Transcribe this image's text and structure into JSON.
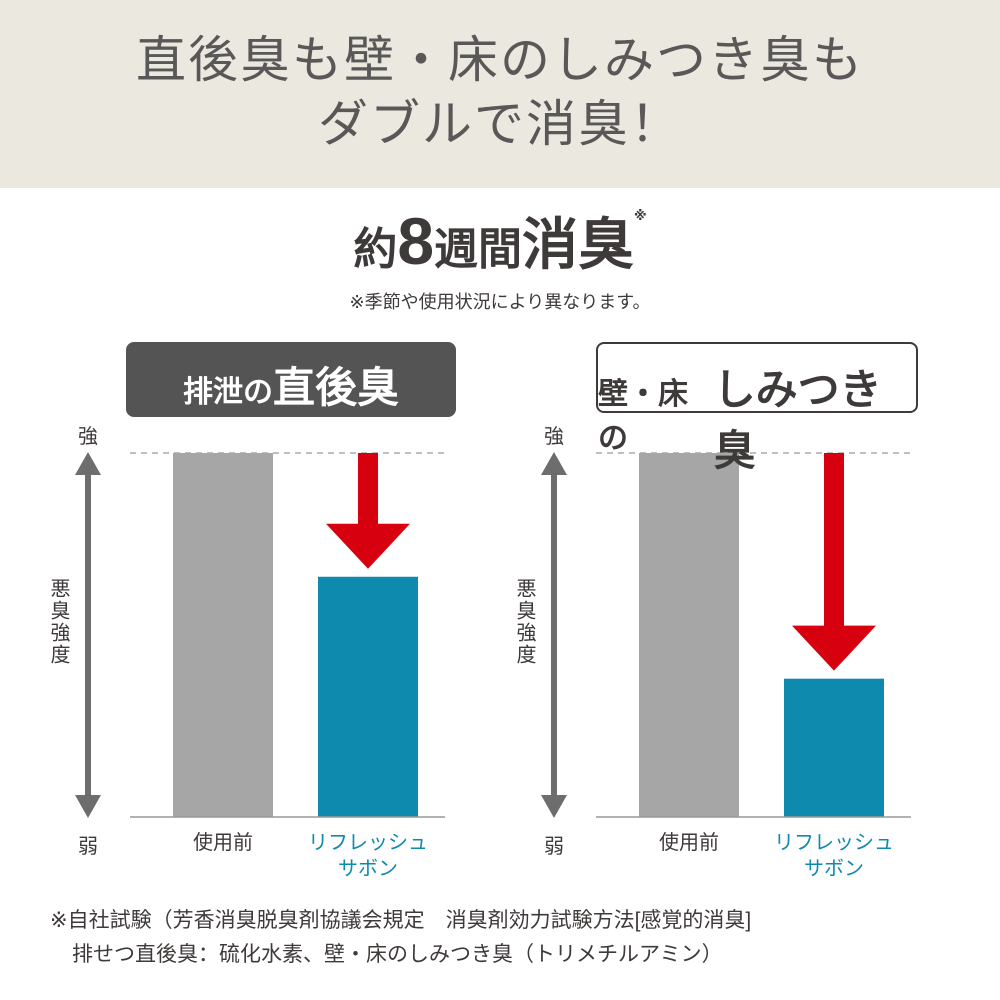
{
  "header": {
    "title": "直後臭も壁・床のしみつき臭も\nダブルで消臭！"
  },
  "headline": {
    "parts": [
      "約",
      "8",
      "週間",
      "消臭"
    ],
    "mark": "※",
    "note": "※季節や使用状況により異なります。"
  },
  "chart_data": [
    {
      "type": "bar",
      "title_parts": [
        "排泄の",
        "直後臭"
      ],
      "y_label": "悪臭強度",
      "y_top_label": "強",
      "y_bottom_label": "弱",
      "categories": [
        "使用前",
        "リフレッシュ\nサボン"
      ],
      "values": [
        100,
        66
      ],
      "colors": [
        "#a6a6a6",
        "#0e8aae"
      ],
      "ylim": [
        0,
        100
      ]
    },
    {
      "type": "bar",
      "title_parts": [
        "壁・床の",
        "しみつき臭"
      ],
      "y_label": "悪臭強度",
      "y_top_label": "強",
      "y_bottom_label": "弱",
      "categories": [
        "使用前",
        "リフレッシュ\nサボン"
      ],
      "values": [
        100,
        38
      ],
      "colors": [
        "#a6a6a6",
        "#0e8aae"
      ],
      "ylim": [
        0,
        100
      ]
    }
  ],
  "footnote": [
    "※自社試験（芳香消臭脱臭剤協議会規定　消臭剤効力試験方法[感覚的消臭]",
    "排せつ直後臭：硫化水素、壁・床のしみつき臭（トリメチルアミン）"
  ]
}
